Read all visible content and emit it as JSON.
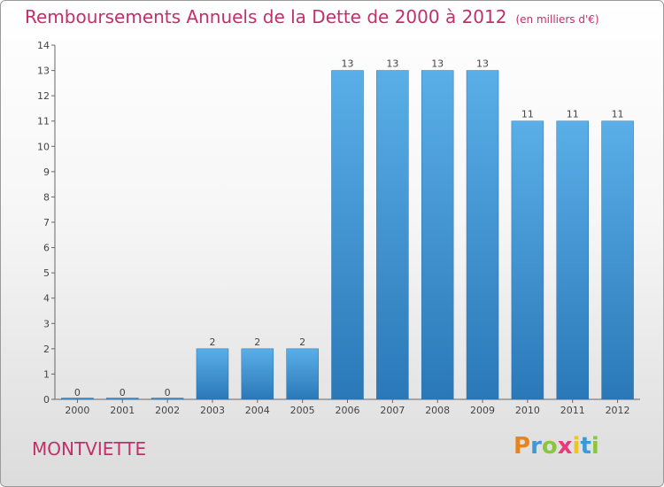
{
  "title": "Remboursements Annuels de la Dette de 2000 à 2012",
  "unit": "(en milliers d'€)",
  "commune": "MONTVIETTE",
  "logo": {
    "p": "P",
    "r": "r",
    "o": "o",
    "x": "x",
    "i": "i",
    "t": "t",
    "i2": "i"
  },
  "colors": {
    "bar_light": "#5aafe8",
    "bar_dark": "#2a78b8",
    "title": "#c0306a"
  },
  "chart_data": {
    "type": "bar",
    "categories": [
      "2000",
      "2001",
      "2002",
      "2003",
      "2004",
      "2005",
      "2006",
      "2007",
      "2008",
      "2009",
      "2010",
      "2011",
      "2012"
    ],
    "values": [
      0,
      0,
      0,
      2,
      2,
      2,
      13,
      13,
      13,
      13,
      11,
      11,
      11
    ],
    "data_labels": [
      "0",
      "0",
      "0",
      "2",
      "2",
      "2",
      "13",
      "13",
      "13",
      "13",
      "11",
      "11",
      "11"
    ],
    "ylim": [
      0,
      14
    ],
    "yticks": [
      0,
      1,
      2,
      3,
      4,
      5,
      6,
      7,
      8,
      9,
      10,
      11,
      12,
      13,
      14
    ],
    "ytick_labels": [
      "0",
      "1",
      "2",
      "3",
      "4",
      "5",
      "6",
      "7",
      "8",
      "9",
      "10",
      "11",
      "12",
      "13",
      "14"
    ],
    "title": "Remboursements Annuels de la Dette de 2000 à 2012",
    "xlabel": "",
    "ylabel": "",
    "grid": false
  }
}
